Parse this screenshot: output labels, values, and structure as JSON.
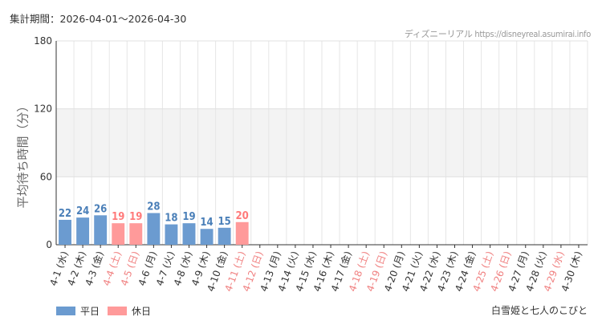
{
  "period_text": "集計期間：2026-04-01～2026-04-30",
  "source_text": "ディズニーリアル https://disneyreal.asumirai.info",
  "attraction_name": "白雪姫と七人のこびと",
  "colors": {
    "weekday_bar": "#6b9bd0",
    "holiday_bar": "#ff9a9a",
    "weekday_label": "#4a7fb8",
    "holiday_label": "#ff7a7a",
    "weekday_tick": "#333333",
    "holiday_tick": "#f08080"
  },
  "chart_data": {
    "type": "bar",
    "ylabel": "平均待ち時間（分）",
    "ylim": [
      0,
      180
    ],
    "yticks": [
      0,
      60,
      120,
      180
    ],
    "shaded_band": [
      60,
      120
    ],
    "legend": [
      {
        "name": "平日",
        "kind": "weekday"
      },
      {
        "name": "休日",
        "kind": "holiday"
      }
    ],
    "legend_position": "bottom-left",
    "categories": [
      "4-1 (水)",
      "4-2 (木)",
      "4-3 (金)",
      "4-4 (土)",
      "4-5 (日)",
      "4-6 (月)",
      "4-7 (火)",
      "4-8 (水)",
      "4-9 (木)",
      "4-10 (金)",
      "4-11 (土)",
      "4-12 (日)",
      "4-13 (月)",
      "4-14 (火)",
      "4-15 (水)",
      "4-16 (木)",
      "4-17 (金)",
      "4-18 (土)",
      "4-19 (日)",
      "4-20 (月)",
      "4-21 (火)",
      "4-22 (水)",
      "4-23 (木)",
      "4-24 (金)",
      "4-25 (土)",
      "4-26 (日)",
      "4-27 (月)",
      "4-28 (火)",
      "4-29 (水)",
      "4-30 (木)"
    ],
    "holiday": [
      false,
      false,
      false,
      true,
      true,
      false,
      false,
      false,
      false,
      false,
      true,
      true,
      false,
      false,
      false,
      false,
      false,
      true,
      true,
      false,
      false,
      false,
      false,
      false,
      true,
      true,
      false,
      false,
      true,
      false
    ],
    "values": [
      22,
      24,
      26,
      19,
      19,
      28,
      18,
      19,
      14,
      15,
      20,
      null,
      null,
      null,
      null,
      null,
      null,
      null,
      null,
      null,
      null,
      null,
      null,
      null,
      null,
      null,
      null,
      null,
      null,
      null
    ]
  }
}
